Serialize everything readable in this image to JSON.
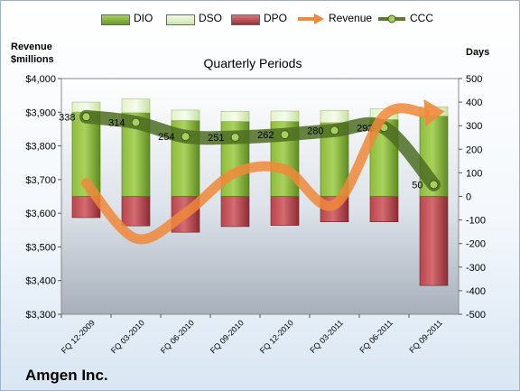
{
  "chart_data": {
    "type": "bar",
    "title": "Quarterly Periods",
    "company": "Amgen Inc.",
    "ylabel_left": [
      "Revenue",
      "$millions"
    ],
    "ylabel_right": "Days",
    "ylim_left": [
      3300,
      4000
    ],
    "yticks_left": [
      "$3,300",
      "$3,400",
      "$3,500",
      "$3,600",
      "$3,700",
      "$3,800",
      "$3,900",
      "$4,000"
    ],
    "ylim_right": [
      -500,
      500
    ],
    "yticks_right": [
      "-500",
      "-400",
      "-300",
      "-200",
      "-100",
      "0",
      "100",
      "200",
      "300",
      "400",
      "500"
    ],
    "categories": [
      "FQ 12-2009",
      "FQ 03-2010",
      "FQ 06-2010",
      "FQ 09-2010",
      "FQ 12-2010",
      "FQ 03-2011",
      "FQ 06-2011",
      "FQ 09-2011"
    ],
    "series": [
      {
        "name": "DIO",
        "axis": "right",
        "values": [
          358,
          355,
          322,
          318,
          318,
          313,
          326,
          341
        ]
      },
      {
        "name": "DSO",
        "axis": "right",
        "values": [
          42,
          58,
          44,
          43,
          44,
          52,
          45,
          39
        ]
      },
      {
        "name": "DPO",
        "axis": "right",
        "values": [
          -90,
          -125,
          -152,
          -128,
          -123,
          -108,
          -108,
          -378
        ]
      },
      {
        "name": "Revenue",
        "axis": "left",
        "values": [
          3690,
          3525,
          3600,
          3720,
          3730,
          3625,
          3890,
          3900
        ]
      },
      {
        "name": "CCC",
        "axis": "right",
        "values": [
          338,
          314,
          254,
          251,
          262,
          280,
          292,
          50
        ],
        "labels": [
          "338",
          "314",
          "254",
          "251",
          "262",
          "280",
          "292",
          "50"
        ]
      }
    ],
    "colors": {
      "DIO": "#7ea832",
      "DSO": "#d8eeb8",
      "DPO": "#b3474d",
      "Revenue": "#f0883a",
      "CCC": "#5b7a2a"
    },
    "legend": "top",
    "grid": false
  }
}
